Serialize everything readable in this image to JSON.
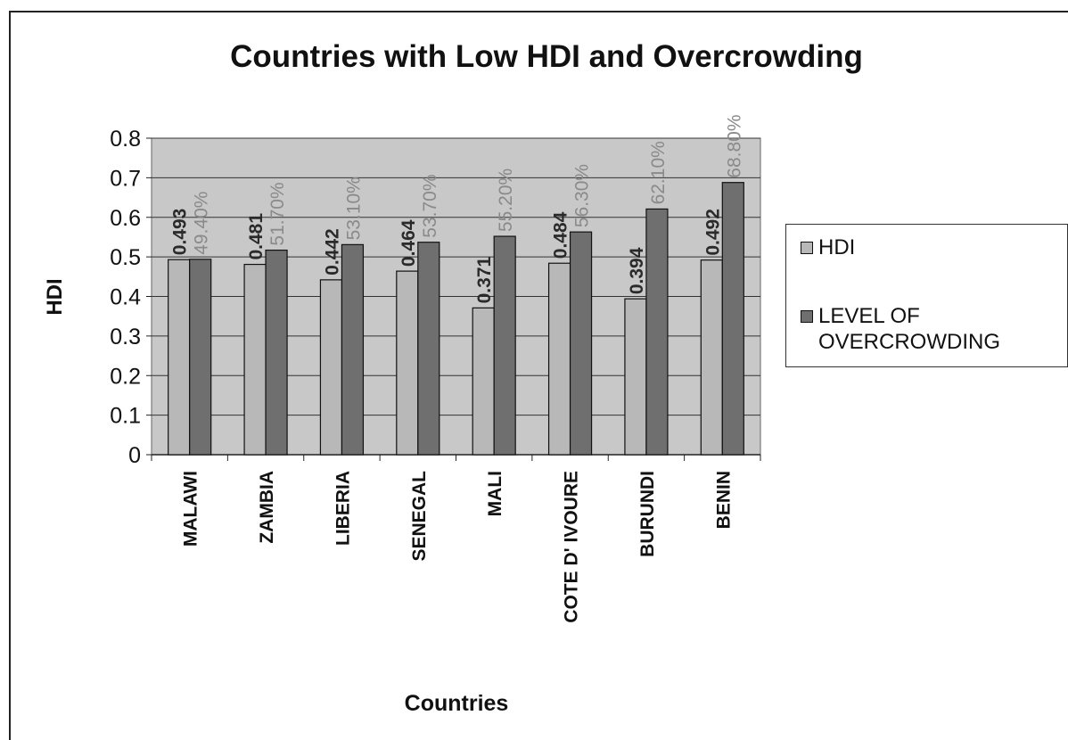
{
  "chart_data": {
    "type": "bar",
    "title": "Countries with Low HDI and Overcrowding",
    "xlabel": "Countries",
    "ylabel": "HDI",
    "ylim": [
      0,
      0.8
    ],
    "yticks": [
      "0",
      "0.1",
      "0.2",
      "0.3",
      "0.4",
      "0.5",
      "0.6",
      "0.7",
      "0.8"
    ],
    "categories": [
      "MALAWI",
      "ZAMBIA",
      "LIBERIA",
      "SENEGAL",
      "MALI",
      "COTE D' IVOURE",
      "BURUNDI",
      "BENIN"
    ],
    "grid": true,
    "legend_position": "right",
    "series": [
      {
        "name": "HDI",
        "values": [
          0.493,
          0.481,
          0.442,
          0.464,
          0.371,
          0.484,
          0.394,
          0.492
        ],
        "labels": [
          "0.493",
          "0.481",
          "0.442",
          "0.464",
          "0.371",
          "0.484",
          "0.394",
          "0.492"
        ],
        "color": "#b8b8b8",
        "label_color": "#2a2a2a"
      },
      {
        "name": "LEVEL OF OVERCROWDING",
        "values": [
          0.494,
          0.517,
          0.531,
          0.537,
          0.552,
          0.563,
          0.621,
          0.688
        ],
        "labels": [
          "49.40%",
          "51.70%",
          "53.10%",
          "53.70%",
          "55.20%",
          "56.30%",
          "62.10%",
          "68.80%"
        ],
        "color": "#6f6f6f",
        "label_color": "#8a8a8a"
      }
    ],
    "plot_background": "#c8c8c8"
  },
  "legend": {
    "items": [
      {
        "label": "HDI",
        "color": "#b8b8b8"
      },
      {
        "label": "LEVEL OF\nOVERCROWDING",
        "color": "#6f6f6f"
      }
    ]
  }
}
